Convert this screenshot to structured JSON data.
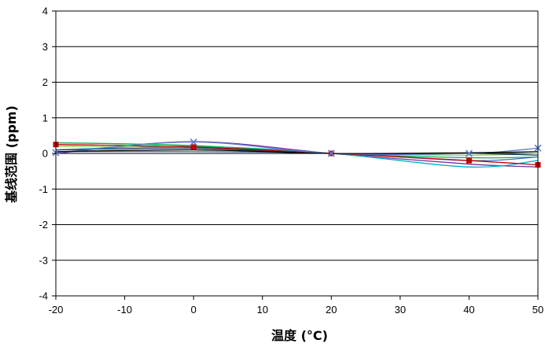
{
  "chart_data": {
    "type": "line",
    "title": "",
    "xlabel": "温度 (°C)",
    "ylabel": "基线范围 (ppm)",
    "xlim": [
      -20,
      50
    ],
    "ylim": [
      -4,
      4
    ],
    "xticks": [
      -20,
      -10,
      0,
      10,
      20,
      30,
      40,
      50
    ],
    "yticks": [
      -4,
      -3,
      -2,
      -1,
      0,
      1,
      2,
      3,
      4
    ],
    "grid": "horizontal",
    "legend": "none",
    "series": [
      {
        "color": "#7030A0",
        "marker": "none",
        "x": [
          -20,
          0,
          20,
          40,
          50
        ],
        "y": [
          0.0,
          0.33,
          0.0,
          -0.3,
          -0.38
        ]
      },
      {
        "color": "#00B0C0",
        "marker": "none",
        "x": [
          -20,
          0,
          20,
          40,
          50
        ],
        "y": [
          0.1,
          0.2,
          0.0,
          -0.38,
          -0.2
        ]
      },
      {
        "color": "#00B050",
        "marker": "none",
        "x": [
          -20,
          0,
          20,
          40,
          50
        ],
        "y": [
          0.3,
          0.22,
          0.0,
          -0.12,
          -0.1
        ]
      },
      {
        "color": "#92D050",
        "marker": "none",
        "x": [
          -20,
          0,
          20,
          40,
          50
        ],
        "y": [
          0.2,
          0.15,
          0.0,
          -0.05,
          0.0
        ]
      },
      {
        "color": "#4472C4",
        "marker": "none",
        "x": [
          -20,
          0,
          20,
          40,
          50
        ],
        "y": [
          0.05,
          0.05,
          0.0,
          -0.2,
          -0.1
        ]
      },
      {
        "color": "#1F3864",
        "marker": "none",
        "x": [
          -20,
          0,
          20,
          40,
          50
        ],
        "y": [
          0.1,
          0.15,
          0.0,
          0.0,
          -0.05
        ]
      },
      {
        "color": "#C00000",
        "marker": "square",
        "x": [
          -20,
          0,
          20,
          40,
          50
        ],
        "y": [
          0.25,
          0.18,
          0.0,
          -0.2,
          -0.32
        ]
      },
      {
        "color": "#5B7FC8",
        "marker": "x",
        "x": [
          -20,
          0,
          20,
          40,
          50
        ],
        "y": [
          0.02,
          0.32,
          0.0,
          0.0,
          0.15
        ]
      },
      {
        "color": "#000000",
        "marker": "none",
        "x": [
          -20,
          0,
          20,
          40,
          50
        ],
        "y": [
          0.05,
          0.1,
          0.0,
          0.02,
          0.05
        ]
      }
    ]
  }
}
